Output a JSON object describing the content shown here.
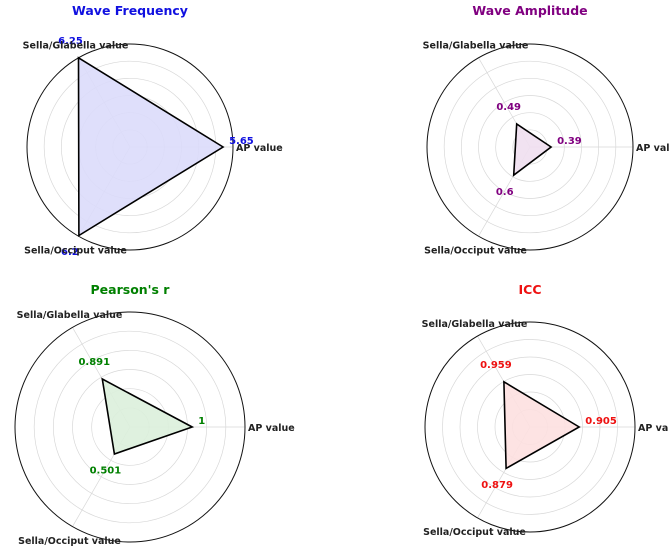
{
  "chart_data": [
    {
      "type": "radar",
      "title": "Wave Frequency",
      "categories": [
        "AP value",
        "Sella/Glabella value",
        "Sella/Occiput value"
      ],
      "values": [
        5.65,
        6.25,
        6.2
      ],
      "value_labels": [
        "5.65",
        "6.25",
        "6.2"
      ],
      "rmax": 6.25,
      "color": "#1010e0",
      "fill": "#dcdcfb",
      "grid": true
    },
    {
      "type": "radar",
      "title": "Wave Amplitude",
      "categories": [
        "AP value",
        "Sella/Glabella value",
        "Sella/Occiput value"
      ],
      "values": [
        0.39,
        0.49,
        0.6
      ],
      "value_labels": [
        "0.39",
        "0.49",
        "0.6"
      ],
      "rmax": 1.9,
      "color": "#800080",
      "fill": "#f0dff0",
      "grid": true
    },
    {
      "type": "radar",
      "title": "Pearson's r",
      "categories": [
        "AP value",
        "Sella/Glabella value",
        "Sella/Occiput value"
      ],
      "values": [
        1,
        0.891,
        0.501
      ],
      "value_labels": [
        "1",
        "0.891",
        "0.501"
      ],
      "rmax": 1.85,
      "color": "#008000",
      "fill": "#dcefdc",
      "grid": true
    },
    {
      "type": "radar",
      "title": "ICC",
      "categories": [
        "AP value",
        "Sella/Glabella value",
        "Sella/Occiput value"
      ],
      "values": [
        0.905,
        0.959,
        0.879
      ],
      "value_labels": [
        "0.905",
        "0.959",
        "0.879"
      ],
      "rmax": 1.93,
      "color": "#ee1111",
      "fill": "#fde0e0",
      "grid": true
    }
  ]
}
